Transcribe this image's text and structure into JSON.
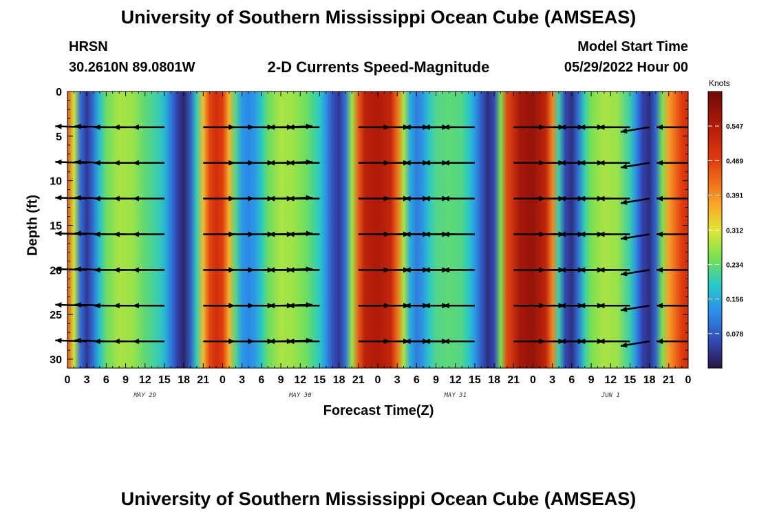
{
  "page": {
    "title": "University of Southern Mississippi Ocean Cube (AMSEAS)",
    "footer_title": "University of Southern Mississippi Ocean Cube (AMSEAS)",
    "station": "HRSN",
    "coords": "30.2610N  89.0801W",
    "chart_title": "2-D Currents Speed-Magnitude",
    "model_start_label": "Model Start Time",
    "model_start_value": "05/29/2022 Hour 00"
  },
  "chart_data": {
    "type": "heatmap",
    "title": "2-D Currents Speed-Magnitude",
    "xlabel": "Forecast Time(Z)",
    "ylabel": "Depth (ft)",
    "x_ticks": [
      "0",
      "3",
      "6",
      "9",
      "12",
      "15",
      "18",
      "21",
      "0",
      "3",
      "6",
      "9",
      "12",
      "15",
      "18",
      "21",
      "0",
      "3",
      "6",
      "9",
      "12",
      "15",
      "18",
      "21",
      "0",
      "3",
      "6",
      "9",
      "12",
      "15",
      "18",
      "21",
      "0"
    ],
    "x_hours": [
      0,
      3,
      6,
      9,
      12,
      15,
      18,
      21,
      24,
      27,
      30,
      33,
      36,
      39,
      42,
      45,
      48,
      51,
      54,
      57,
      60,
      63,
      66,
      69,
      72,
      75,
      78,
      81,
      84,
      87,
      90,
      93,
      96
    ],
    "xlim": [
      0,
      96
    ],
    "date_labels": [
      {
        "text": "MAY 29",
        "hour": 12
      },
      {
        "text": "MAY 30",
        "hour": 36
      },
      {
        "text": "MAY 31",
        "hour": 60
      },
      {
        "text": "JUN 1",
        "hour": 84
      }
    ],
    "y_ticks": [
      0,
      5,
      10,
      15,
      20,
      25,
      30
    ],
    "ylim": [
      0,
      31
    ],
    "colorbar": {
      "units": "Knots",
      "min": 0.0,
      "max": 0.625,
      "tick_labels": [
        "0.078",
        "0.156",
        "0.234",
        "0.312",
        "0.391",
        "0.469",
        "0.547"
      ],
      "tick_values": [
        0.078,
        0.156,
        0.234,
        0.312,
        0.391,
        0.469,
        0.547
      ]
    },
    "speed_by_hour": [
      {
        "h": 0,
        "v": 0.45
      },
      {
        "h": 1,
        "v": 0.3
      },
      {
        "h": 2,
        "v": 0.1
      },
      {
        "h": 3,
        "v": 0.04
      },
      {
        "h": 4,
        "v": 0.1
      },
      {
        "h": 5,
        "v": 0.18
      },
      {
        "h": 6,
        "v": 0.24
      },
      {
        "h": 8,
        "v": 0.28
      },
      {
        "h": 10,
        "v": 0.27
      },
      {
        "h": 12,
        "v": 0.23
      },
      {
        "h": 14,
        "v": 0.2
      },
      {
        "h": 15,
        "v": 0.17
      },
      {
        "h": 16,
        "v": 0.11
      },
      {
        "h": 17,
        "v": 0.05
      },
      {
        "h": 18,
        "v": 0.02
      },
      {
        "h": 19,
        "v": 0.08
      },
      {
        "h": 20,
        "v": 0.2
      },
      {
        "h": 21,
        "v": 0.35
      },
      {
        "h": 22,
        "v": 0.46
      },
      {
        "h": 23,
        "v": 0.5
      },
      {
        "h": 24,
        "v": 0.47
      },
      {
        "h": 25,
        "v": 0.36
      },
      {
        "h": 26,
        "v": 0.22
      },
      {
        "h": 27,
        "v": 0.14
      },
      {
        "h": 28,
        "v": 0.12
      },
      {
        "h": 29,
        "v": 0.14
      },
      {
        "h": 30,
        "v": 0.19
      },
      {
        "h": 31,
        "v": 0.24
      },
      {
        "h": 33,
        "v": 0.28
      },
      {
        "h": 35,
        "v": 0.27
      },
      {
        "h": 37,
        "v": 0.24
      },
      {
        "h": 39,
        "v": 0.19
      },
      {
        "h": 40,
        "v": 0.13
      },
      {
        "h": 41,
        "v": 0.07
      },
      {
        "h": 42,
        "v": 0.04
      },
      {
        "h": 43,
        "v": 0.1
      },
      {
        "h": 44,
        "v": 0.27
      },
      {
        "h": 45,
        "v": 0.44
      },
      {
        "h": 46,
        "v": 0.53
      },
      {
        "h": 48,
        "v": 0.55
      },
      {
        "h": 50,
        "v": 0.52
      },
      {
        "h": 51,
        "v": 0.42
      },
      {
        "h": 52,
        "v": 0.28
      },
      {
        "h": 53,
        "v": 0.16
      },
      {
        "h": 54,
        "v": 0.11
      },
      {
        "h": 55,
        "v": 0.14
      },
      {
        "h": 56,
        "v": 0.19
      },
      {
        "h": 57,
        "v": 0.22
      },
      {
        "h": 59,
        "v": 0.23
      },
      {
        "h": 61,
        "v": 0.22
      },
      {
        "h": 62,
        "v": 0.19
      },
      {
        "h": 63,
        "v": 0.14
      },
      {
        "h": 64,
        "v": 0.08
      },
      {
        "h": 65,
        "v": 0.03
      },
      {
        "h": 66,
        "v": 0.06
      },
      {
        "h": 67,
        "v": 0.25
      },
      {
        "h": 68,
        "v": 0.46
      },
      {
        "h": 70,
        "v": 0.56
      },
      {
        "h": 72,
        "v": 0.58
      },
      {
        "h": 74,
        "v": 0.52
      },
      {
        "h": 75,
        "v": 0.4
      },
      {
        "h": 76,
        "v": 0.2
      },
      {
        "h": 77,
        "v": 0.06
      },
      {
        "h": 78,
        "v": 0.03
      },
      {
        "h": 79,
        "v": 0.1
      },
      {
        "h": 80,
        "v": 0.2
      },
      {
        "h": 81,
        "v": 0.25
      },
      {
        "h": 83,
        "v": 0.28
      },
      {
        "h": 85,
        "v": 0.27
      },
      {
        "h": 87,
        "v": 0.2
      },
      {
        "h": 88,
        "v": 0.12
      },
      {
        "h": 89,
        "v": 0.05
      },
      {
        "h": 90,
        "v": 0.03
      },
      {
        "h": 91,
        "v": 0.09
      },
      {
        "h": 92,
        "v": 0.25
      },
      {
        "h": 93,
        "v": 0.38
      },
      {
        "h": 95,
        "v": 0.47
      },
      {
        "h": 96,
        "v": 0.5
      }
    ],
    "vector_depths_ft": [
      4,
      8,
      12,
      16,
      20,
      24,
      28
    ],
    "vector_hours": [
      3,
      6,
      9,
      12,
      15,
      18,
      21,
      24,
      27,
      30,
      33,
      36,
      39,
      42,
      45,
      48,
      51,
      54,
      57,
      60,
      63,
      66,
      69,
      72,
      75,
      78,
      81,
      84,
      87,
      90,
      93,
      96
    ],
    "vector_direction_deg": [
      {
        "h": 3,
        "dir": 175
      },
      {
        "h": 6,
        "dir": 175
      },
      {
        "h": 9,
        "dir": 180
      },
      {
        "h": 12,
        "dir": 180
      },
      {
        "h": 15,
        "dir": 180
      },
      {
        "h": 21,
        "dir": 0
      },
      {
        "h": 24,
        "dir": 0
      },
      {
        "h": 27,
        "dir": 0
      },
      {
        "h": 30,
        "dir": 0
      },
      {
        "h": 33,
        "dir": 5
      },
      {
        "h": 36,
        "dir": 180
      },
      {
        "h": 39,
        "dir": 180
      },
      {
        "h": 45,
        "dir": 0
      },
      {
        "h": 48,
        "dir": 0
      },
      {
        "h": 51,
        "dir": 0
      },
      {
        "h": 54,
        "dir": 0
      },
      {
        "h": 57,
        "dir": 180
      },
      {
        "h": 60,
        "dir": 180
      },
      {
        "h": 63,
        "dir": 180
      },
      {
        "h": 69,
        "dir": 0
      },
      {
        "h": 72,
        "dir": 0
      },
      {
        "h": 75,
        "dir": 0
      },
      {
        "h": 78,
        "dir": 0
      },
      {
        "h": 81,
        "dir": 180
      },
      {
        "h": 84,
        "dir": 180
      },
      {
        "h": 87,
        "dir": 180
      },
      {
        "h": 90,
        "dir": 205
      },
      {
        "h": 96,
        "dir": 180
      }
    ]
  }
}
